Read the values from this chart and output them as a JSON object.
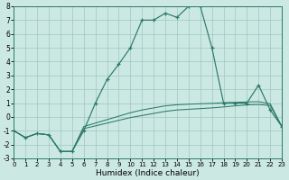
{
  "xlabel": "Humidex (Indice chaleur)",
  "background_color": "#cce8e2",
  "grid_color": "#9dc8c0",
  "line_color": "#2a7a6a",
  "xlim": [
    0,
    23
  ],
  "ylim": [
    -3,
    8
  ],
  "xticks": [
    0,
    1,
    2,
    3,
    4,
    5,
    6,
    7,
    8,
    9,
    10,
    11,
    12,
    13,
    14,
    15,
    16,
    17,
    18,
    19,
    20,
    21,
    22,
    23
  ],
  "yticks": [
    -3,
    -2,
    -1,
    0,
    1,
    2,
    3,
    4,
    5,
    6,
    7,
    8
  ],
  "main_x": [
    0,
    1,
    2,
    3,
    4,
    5,
    6,
    7,
    8,
    9,
    10,
    11,
    12,
    13,
    14,
    15,
    16,
    17,
    18,
    19,
    20,
    21,
    22,
    23
  ],
  "main_y": [
    -1,
    -1.5,
    -1.2,
    -1.3,
    -2.5,
    -2.5,
    -1,
    1,
    2.7,
    3.8,
    5,
    7,
    7,
    7.5,
    7.2,
    8,
    8,
    5,
    1,
    1,
    1,
    2.3,
    0.5,
    -0.7
  ],
  "low1_x": [
    0,
    1,
    2,
    3,
    4,
    5,
    6,
    7,
    8,
    9,
    10,
    11,
    12,
    13,
    14,
    15,
    16,
    17,
    18,
    19,
    20,
    21,
    22,
    23
  ],
  "low1_y": [
    -1,
    -1.5,
    -1.2,
    -1.3,
    -2.5,
    -2.5,
    -0.85,
    -0.65,
    -0.45,
    -0.25,
    -0.05,
    0.1,
    0.25,
    0.4,
    0.5,
    0.55,
    0.6,
    0.65,
    0.72,
    0.8,
    0.87,
    0.9,
    0.82,
    -0.7
  ],
  "low2_x": [
    0,
    1,
    2,
    3,
    4,
    5,
    6,
    7,
    8,
    9,
    10,
    11,
    12,
    13,
    14,
    15,
    16,
    17,
    18,
    19,
    20,
    21,
    22,
    23
  ],
  "low2_y": [
    -1,
    -1.5,
    -1.2,
    -1.3,
    -2.5,
    -2.5,
    -0.7,
    -0.45,
    -0.2,
    0.05,
    0.3,
    0.5,
    0.65,
    0.8,
    0.88,
    0.92,
    0.95,
    0.98,
    1.02,
    1.05,
    1.08,
    1.1,
    0.95,
    -0.7
  ]
}
